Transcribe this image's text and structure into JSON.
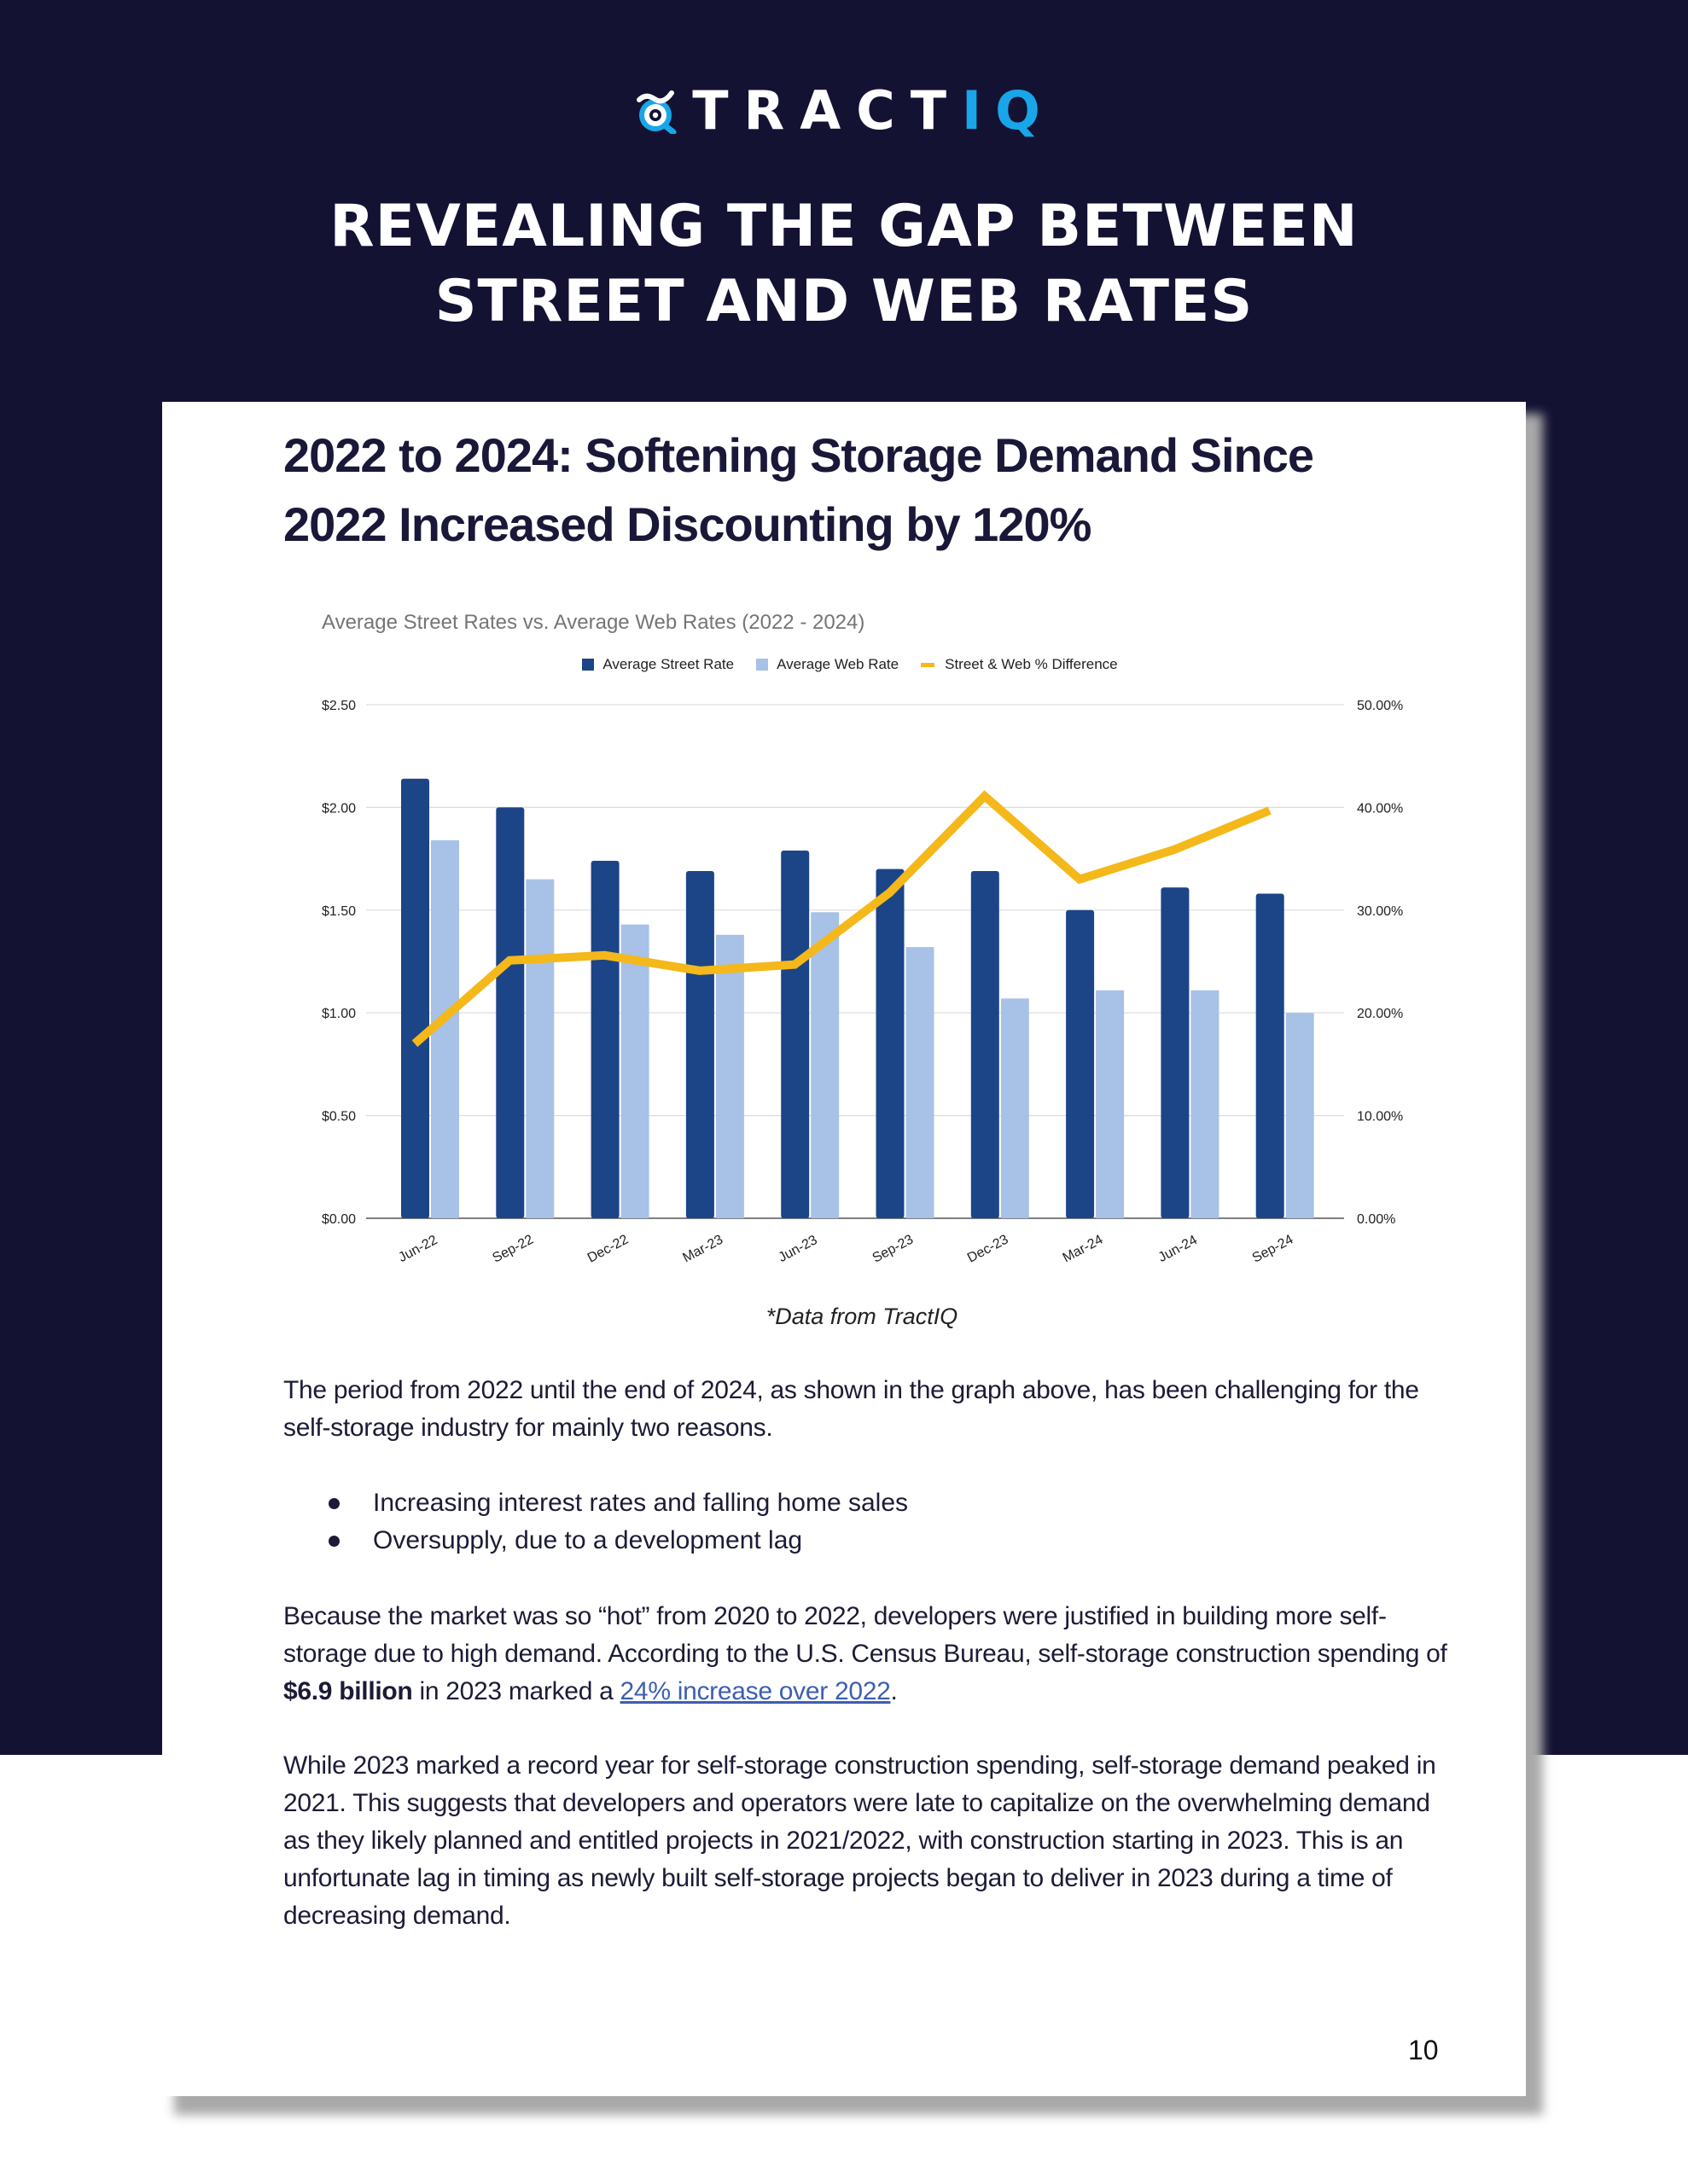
{
  "brand": {
    "logo_text_main": "TRACT",
    "logo_text_accent": "IQ",
    "accent_color": "#19a6e8",
    "background_color": "#141233"
  },
  "hero": {
    "headline_line1": "REVEALING THE GAP BETWEEN",
    "headline_line2": "STREET AND WEB RATES"
  },
  "article": {
    "title_line1": "2022 to 2024: Softening Storage Demand Since",
    "title_line2": "2022 Increased Discounting by 120%",
    "source_note": "*Data from TractIQ",
    "paragraph1": "The period from 2022 until the end of 2024, as shown in the graph above, has been challenging for the self-storage industry for mainly two reasons.",
    "bullets": [
      "Increasing interest rates and falling home sales",
      "Oversupply, due to a development lag"
    ],
    "paragraph2_part1": "Because the market was so “hot” from 2020 to 2022, developers were justified in building more self-storage due to high demand. According to the U.S. Census Bureau, self-storage construction spending of ",
    "paragraph2_bold": "$6.9 billion",
    "paragraph2_part2": " in 2023 marked a ",
    "paragraph2_link": "24% increase over 2022",
    "paragraph2_end": ".",
    "paragraph3": "While 2023 marked a record year for self-storage construction spending, self-storage demand peaked in 2021. This suggests that developers and operators were late to capitalize on the overwhelming demand as they likely planned and entitled projects in 2021/2022, with construction starting in 2023. This is an unfortunate lag in timing as newly built self-storage projects began to deliver in 2023 during a time of decreasing demand.",
    "page_number": "10"
  },
  "chart_data": {
    "type": "bar",
    "title": "Average Street Rates vs. Average Web Rates (2022 - 2024)",
    "categories": [
      "Jun-22",
      "Sep-22",
      "Dec-22",
      "Mar-23",
      "Jun-23",
      "Sep-23",
      "Dec-23",
      "Mar-24",
      "Jun-24",
      "Sep-24"
    ],
    "series": [
      {
        "name": "Average Street Rate",
        "type": "bar",
        "axis": "left",
        "color": "#1c4587",
        "values": [
          2.14,
          2.0,
          1.74,
          1.69,
          1.79,
          1.7,
          1.69,
          1.5,
          1.61,
          1.58
        ]
      },
      {
        "name": "Average Web Rate",
        "type": "bar",
        "axis": "left",
        "color": "#a8c1e6",
        "values": [
          1.84,
          1.65,
          1.43,
          1.38,
          1.49,
          1.32,
          1.07,
          1.11,
          1.11,
          1.0
        ]
      },
      {
        "name": "Street & Web % Difference",
        "type": "line",
        "axis": "right",
        "color": "#f4b81a",
        "values": [
          17.0,
          25.1,
          25.6,
          24.1,
          24.7,
          31.7,
          41.1,
          33.0,
          35.9,
          39.7
        ]
      }
    ],
    "y_left": {
      "ticks": [
        "$0.00",
        "$0.50",
        "$1.00",
        "$1.50",
        "$2.00",
        "$2.50"
      ],
      "range": [
        0,
        2.5
      ]
    },
    "y_right": {
      "ticks": [
        "0.00%",
        "10.00%",
        "20.00%",
        "30.00%",
        "40.00%",
        "50.00%"
      ],
      "range": [
        0,
        50
      ]
    },
    "xlabel": "",
    "ylabel": "",
    "legend_position": "top-center",
    "grid": true
  }
}
